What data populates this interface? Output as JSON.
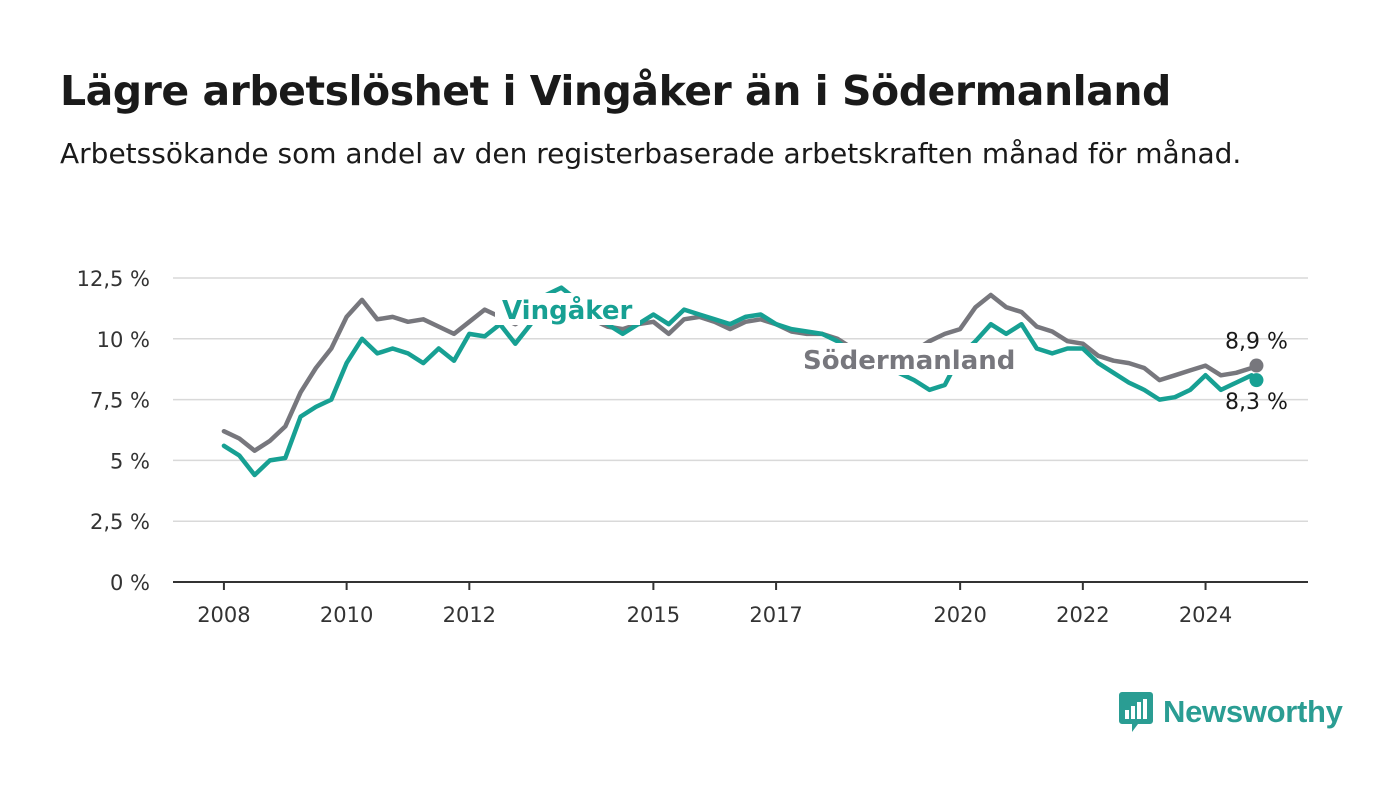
{
  "title": "Lägre arbetslöshet i Vingåker än i Södermanland",
  "subtitle": "Arbetssökande som andel av den registerbaserade arbetskraften månad för månad.",
  "brand": {
    "name": "Newsworthy",
    "color": "#2a9d93"
  },
  "colors": {
    "vingaker": "#17a093",
    "sodermanland": "#77777d",
    "grid": "#d9d9d9",
    "axis": "#333333"
  },
  "chart_data": {
    "type": "line",
    "ylim": [
      0,
      12.5
    ],
    "yticks": [
      0,
      2.5,
      5,
      7.5,
      10,
      12.5
    ],
    "ytick_labels": [
      "0 %",
      "2,5 %",
      "5 %",
      "7,5 %",
      "10 %",
      "12,5 %"
    ],
    "xticks": [
      2008,
      2010,
      2012,
      2015,
      2017,
      2020,
      2022,
      2024
    ],
    "xtick_labels": [
      "2008",
      "2010",
      "2012",
      "2015",
      "2017",
      "2020",
      "2022",
      "2024"
    ],
    "grid": true,
    "series": [
      {
        "name": "Vingåker",
        "color": "#17a093",
        "end_label": "8,3 %",
        "points": [
          [
            2008.0,
            5.6
          ],
          [
            2008.25,
            5.2
          ],
          [
            2008.5,
            4.4
          ],
          [
            2008.75,
            5.0
          ],
          [
            2009.0,
            5.1
          ],
          [
            2009.25,
            6.8
          ],
          [
            2009.5,
            7.2
          ],
          [
            2009.75,
            7.5
          ],
          [
            2010.0,
            9.0
          ],
          [
            2010.25,
            10.0
          ],
          [
            2010.5,
            9.4
          ],
          [
            2010.75,
            9.6
          ],
          [
            2011.0,
            9.4
          ],
          [
            2011.25,
            9.0
          ],
          [
            2011.5,
            9.6
          ],
          [
            2011.75,
            9.1
          ],
          [
            2012.0,
            10.2
          ],
          [
            2012.25,
            10.1
          ],
          [
            2012.5,
            10.6
          ],
          [
            2012.75,
            9.8
          ],
          [
            2013.0,
            10.6
          ],
          [
            2013.25,
            11.8
          ],
          [
            2013.5,
            12.1
          ],
          [
            2013.75,
            11.6
          ],
          [
            2014.0,
            11.0
          ],
          [
            2014.25,
            10.6
          ],
          [
            2014.5,
            10.2
          ],
          [
            2014.75,
            10.6
          ],
          [
            2015.0,
            11.0
          ],
          [
            2015.25,
            10.6
          ],
          [
            2015.5,
            11.2
          ],
          [
            2015.75,
            11.0
          ],
          [
            2016.0,
            10.8
          ],
          [
            2016.25,
            10.6
          ],
          [
            2016.5,
            10.9
          ],
          [
            2016.75,
            11.0
          ],
          [
            2017.0,
            10.6
          ],
          [
            2017.25,
            10.4
          ],
          [
            2017.5,
            10.3
          ],
          [
            2017.75,
            10.2
          ],
          [
            2018.0,
            9.9
          ],
          [
            2018.25,
            9.4
          ],
          [
            2018.5,
            9.0
          ],
          [
            2018.75,
            8.8
          ],
          [
            2019.0,
            8.6
          ],
          [
            2019.25,
            8.3
          ],
          [
            2019.5,
            7.9
          ],
          [
            2019.75,
            8.1
          ],
          [
            2020.0,
            9.3
          ],
          [
            2020.25,
            9.9
          ],
          [
            2020.5,
            10.6
          ],
          [
            2020.75,
            10.2
          ],
          [
            2021.0,
            10.6
          ],
          [
            2021.25,
            9.6
          ],
          [
            2021.5,
            9.4
          ],
          [
            2021.75,
            9.6
          ],
          [
            2022.0,
            9.6
          ],
          [
            2022.25,
            9.0
          ],
          [
            2022.5,
            8.6
          ],
          [
            2022.75,
            8.2
          ],
          [
            2023.0,
            7.9
          ],
          [
            2023.25,
            7.5
          ],
          [
            2023.5,
            7.6
          ],
          [
            2023.75,
            7.9
          ],
          [
            2024.0,
            8.5
          ],
          [
            2024.25,
            7.9
          ],
          [
            2024.5,
            8.2
          ],
          [
            2024.75,
            8.5
          ],
          [
            2024.83,
            8.3
          ]
        ]
      },
      {
        "name": "Södermanland",
        "color": "#77777d",
        "end_label": "8,9 %",
        "points": [
          [
            2008.0,
            6.2
          ],
          [
            2008.25,
            5.9
          ],
          [
            2008.5,
            5.4
          ],
          [
            2008.75,
            5.8
          ],
          [
            2009.0,
            6.4
          ],
          [
            2009.25,
            7.8
          ],
          [
            2009.5,
            8.8
          ],
          [
            2009.75,
            9.6
          ],
          [
            2010.0,
            10.9
          ],
          [
            2010.25,
            11.6
          ],
          [
            2010.5,
            10.8
          ],
          [
            2010.75,
            10.9
          ],
          [
            2011.0,
            10.7
          ],
          [
            2011.25,
            10.8
          ],
          [
            2011.5,
            10.5
          ],
          [
            2011.75,
            10.2
          ],
          [
            2012.0,
            10.7
          ],
          [
            2012.25,
            11.2
          ],
          [
            2012.5,
            10.9
          ],
          [
            2012.75,
            10.6
          ],
          [
            2013.0,
            11.0
          ],
          [
            2013.25,
            11.5
          ],
          [
            2013.5,
            11.4
          ],
          [
            2013.75,
            11.1
          ],
          [
            2014.0,
            10.8
          ],
          [
            2014.25,
            10.5
          ],
          [
            2014.5,
            10.4
          ],
          [
            2014.75,
            10.6
          ],
          [
            2015.0,
            10.7
          ],
          [
            2015.25,
            10.2
          ],
          [
            2015.5,
            10.8
          ],
          [
            2015.75,
            10.9
          ],
          [
            2016.0,
            10.7
          ],
          [
            2016.25,
            10.4
          ],
          [
            2016.5,
            10.7
          ],
          [
            2016.75,
            10.8
          ],
          [
            2017.0,
            10.6
          ],
          [
            2017.25,
            10.3
          ],
          [
            2017.5,
            10.2
          ],
          [
            2017.75,
            10.2
          ],
          [
            2018.0,
            10.0
          ],
          [
            2018.25,
            9.6
          ],
          [
            2018.5,
            9.2
          ],
          [
            2018.75,
            9.1
          ],
          [
            2019.0,
            9.3
          ],
          [
            2019.25,
            9.5
          ],
          [
            2019.5,
            9.9
          ],
          [
            2019.75,
            10.2
          ],
          [
            2020.0,
            10.4
          ],
          [
            2020.25,
            11.3
          ],
          [
            2020.5,
            11.8
          ],
          [
            2020.75,
            11.3
          ],
          [
            2021.0,
            11.1
          ],
          [
            2021.25,
            10.5
          ],
          [
            2021.5,
            10.3
          ],
          [
            2021.75,
            9.9
          ],
          [
            2022.0,
            9.8
          ],
          [
            2022.25,
            9.3
          ],
          [
            2022.5,
            9.1
          ],
          [
            2022.75,
            9.0
          ],
          [
            2023.0,
            8.8
          ],
          [
            2023.25,
            8.3
          ],
          [
            2023.5,
            8.5
          ],
          [
            2023.75,
            8.7
          ],
          [
            2024.0,
            8.9
          ],
          [
            2024.25,
            8.5
          ],
          [
            2024.5,
            8.6
          ],
          [
            2024.75,
            8.8
          ],
          [
            2024.83,
            8.9
          ]
        ]
      }
    ]
  }
}
